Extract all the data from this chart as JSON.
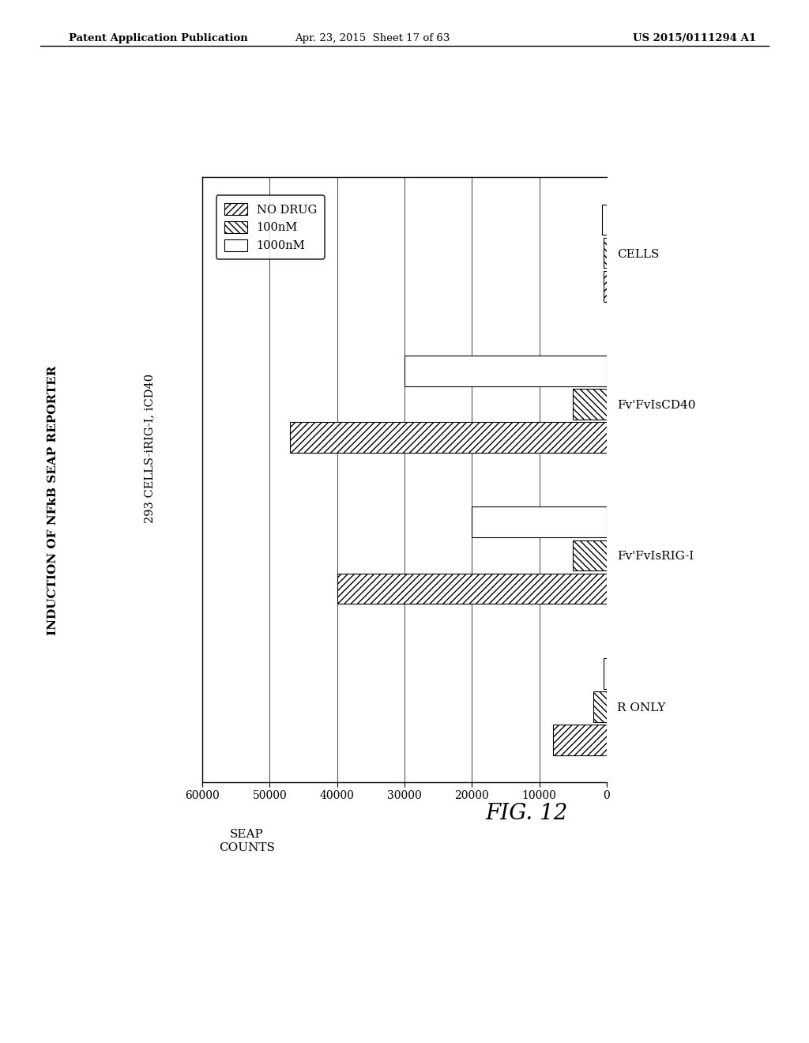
{
  "title": "INDUCTION OF NFkB SEAP REPORTER",
  "subtitle": "293 CELLS-iRIG-I, iCD40",
  "xlabel": "SEAP\nCOUNTS",
  "xlim": [
    60000,
    0
  ],
  "xticks": [
    60000,
    50000,
    40000,
    30000,
    20000,
    10000,
    0
  ],
  "xtick_labels": [
    "60000",
    "50000",
    "40000",
    "30000",
    "20000",
    "10000",
    "0"
  ],
  "categories": [
    "R ONLY",
    "Fv'FvIsRIG-I",
    "Fv'FvIsCD40",
    "CELLS"
  ],
  "legend_labels": [
    "NO DRUG",
    "100nM",
    "1000nM"
  ],
  "hatches": [
    "////",
    "\\\\\\\\",
    ""
  ],
  "data": [
    [
      8000,
      2000,
      500
    ],
    [
      40000,
      5000,
      20000
    ],
    [
      47000,
      5000,
      30000
    ],
    [
      500,
      500,
      700
    ]
  ],
  "bar_height": 0.22,
  "background_color": "#ffffff",
  "fig_label": "FIG. 12",
  "patent_left": "Patent Application Publication",
  "patent_mid": "Apr. 23, 2015  Sheet 17 of 63",
  "patent_right": "US 2015/0111294 A1"
}
